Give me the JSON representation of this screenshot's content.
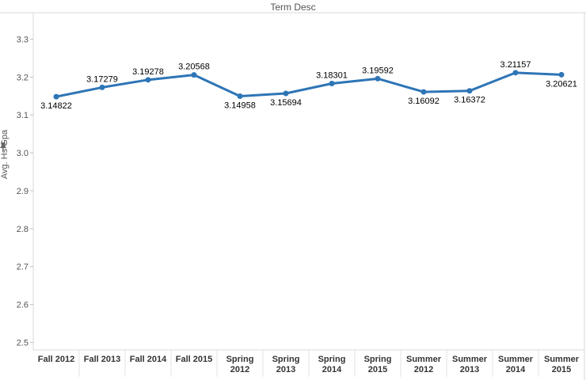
{
  "chart_data": {
    "type": "line",
    "title": "Term Desc",
    "xlabel": "",
    "ylabel": "Avg. Hs Gpa",
    "categories": [
      [
        "Fall 2012"
      ],
      [
        "Fall 2013"
      ],
      [
        "Fall 2014"
      ],
      [
        "Fall 2015"
      ],
      [
        "Spring",
        "2012"
      ],
      [
        "Spring",
        "2013"
      ],
      [
        "Spring",
        "2014"
      ],
      [
        "Spring",
        "2015"
      ],
      [
        "Summer",
        "2012"
      ],
      [
        "Summer",
        "2013"
      ],
      [
        "Summer",
        "2014"
      ],
      [
        "Summer",
        "2015"
      ]
    ],
    "series": [
      {
        "values": [
          3.14822,
          3.17279,
          3.19278,
          3.20568,
          3.14958,
          3.15694,
          3.18301,
          3.19592,
          3.16092,
          3.16372,
          3.21157,
          3.20621
        ],
        "labels": [
          "3.14822",
          "3.17279",
          "3.19278",
          "3.20568",
          "3.14958",
          "3.15694",
          "3.18301",
          "3.19592",
          "3.16092",
          "3.16372",
          "3.21157",
          "3.20621"
        ],
        "color": "#2e75b6"
      }
    ],
    "ylim": [
      2.48,
      3.37
    ],
    "yticks": [
      2.5,
      2.6,
      2.7,
      2.8,
      2.9,
      3.0,
      3.1,
      3.2,
      3.3
    ],
    "ytick_labels": [
      "2.5",
      "2.6",
      "2.7",
      "2.8",
      "2.9",
      "3.0",
      "3.1",
      "3.2",
      "3.3"
    ],
    "grid": false,
    "legend": "none"
  },
  "icons": {
    "axis_pin": "pin-icon"
  }
}
